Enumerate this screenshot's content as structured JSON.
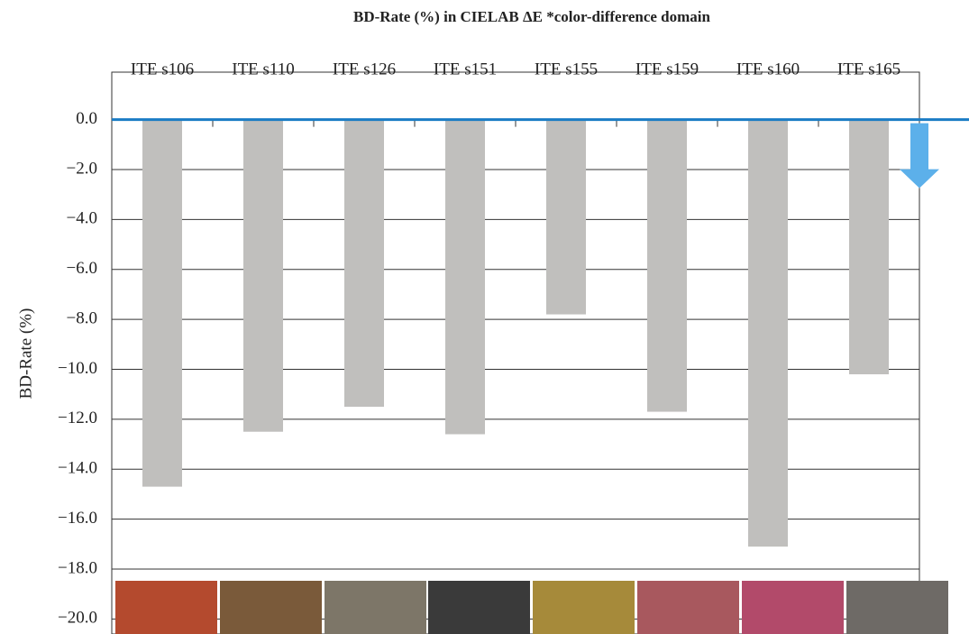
{
  "chart_data": {
    "type": "bar",
    "title": "BD-Rate (%) in CIELAB ΔE *color-difference domain",
    "y_label": "BD-Rate (%)",
    "categories": [
      "ITE s106",
      "ITE s110",
      "ITE s126",
      "ITE s151",
      "ITE s155",
      "ITE s159",
      "ITE s160",
      "ITE s165"
    ],
    "values": [
      -14.7,
      -12.5,
      -11.5,
      -12.6,
      -7.8,
      -11.7,
      -17.1,
      -10.2
    ],
    "color": "#c0bfbd",
    "ylim": [
      -20.6,
      1.9
    ],
    "yticks": [
      {
        "value": 0,
        "label": "0.0"
      },
      {
        "value": -2,
        "label": "−2.0"
      },
      {
        "value": -4,
        "label": "−4.0"
      },
      {
        "value": -6,
        "label": "−6.0"
      },
      {
        "value": -8,
        "label": "−8.0"
      },
      {
        "value": -10,
        "label": "−10.0"
      },
      {
        "value": -12,
        "label": "−12.0"
      },
      {
        "value": -14,
        "label": "−14.0"
      },
      {
        "value": -16,
        "label": "−16.0"
      },
      {
        "value": -18,
        "label": "−18.0"
      },
      {
        "value": -20,
        "label": "−20.0"
      }
    ],
    "grid": true
  }
}
